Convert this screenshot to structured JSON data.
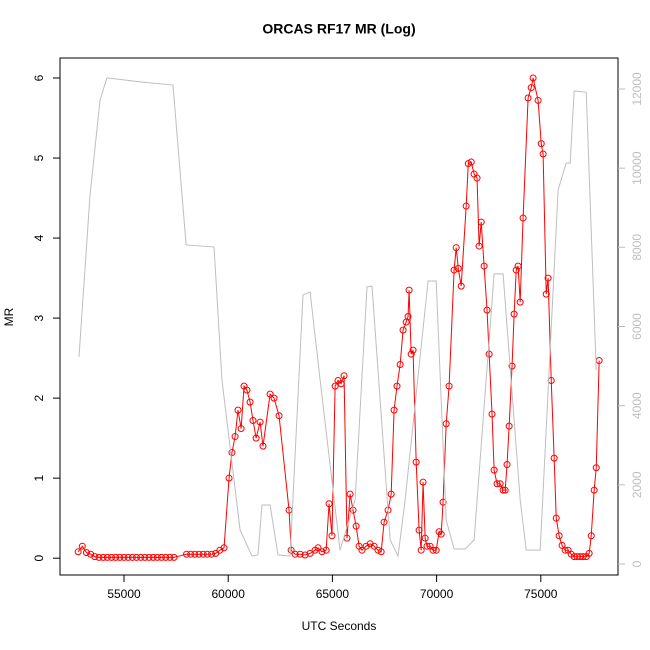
{
  "chart_data": {
    "type": "line",
    "title": "ORCAS RF17 MR (Log)",
    "x_label": "UTC Seconds",
    "y_label": "MR",
    "xlim": [
      51929,
      78704
    ],
    "xticks": [
      55000,
      60000,
      65000,
      70000,
      75000
    ],
    "ylim": [
      -0.21,
      6.25
    ],
    "yticks": [
      0,
      1,
      2,
      3,
      4,
      5,
      6
    ],
    "y2lim": [
      -278,
      12783
    ],
    "y2ticks": [
      0,
      2000,
      4000,
      6000,
      8000,
      10000,
      12000
    ],
    "series": [
      {
        "name": "MR",
        "color": "#ff0000",
        "axis": "y",
        "markers": true,
        "x": [
          52800,
          53000,
          53200,
          53400,
          53600,
          53800,
          54000,
          54200,
          54400,
          54600,
          54800,
          55000,
          55200,
          55400,
          55600,
          55800,
          56000,
          56200,
          56400,
          56600,
          56800,
          57000,
          57200,
          57400,
          58000,
          58200,
          58400,
          58600,
          58800,
          59000,
          59200,
          59400,
          59600,
          59800,
          60040,
          60180,
          60330,
          60470,
          60620,
          60760,
          60900,
          61050,
          61190,
          61340,
          61530,
          61670,
          62010,
          62200,
          62440,
          62920,
          63020,
          63210,
          63450,
          63690,
          63930,
          64170,
          64310,
          64500,
          64700,
          64840,
          64980,
          65130,
          65270,
          65420,
          65560,
          65700,
          65850,
          65990,
          66140,
          66280,
          66420,
          66620,
          66810,
          67000,
          67190,
          67340,
          67480,
          67670,
          67820,
          67960,
          68100,
          68250,
          68390,
          68540,
          68630,
          68680,
          68780,
          68870,
          69020,
          69160,
          69260,
          69350,
          69450,
          69540,
          69690,
          69830,
          69980,
          70120,
          70220,
          70310,
          70460,
          70600,
          70840,
          70940,
          71040,
          71180,
          71420,
          71520,
          71660,
          71800,
          71940,
          72040,
          72140,
          72280,
          72420,
          72520,
          72660,
          72760,
          72900,
          73050,
          73190,
          73290,
          73380,
          73480,
          73620,
          73720,
          73820,
          73910,
          74010,
          74150,
          74390,
          74540,
          74630,
          74870,
          75020,
          75110,
          75260,
          75350,
          75500,
          75640,
          75740,
          75880,
          76020,
          76170,
          76310,
          76460,
          76600,
          76740,
          76890,
          77030,
          77180,
          77320,
          77420,
          77560,
          77660,
          77800
        ],
        "values": [
          0.08,
          0.15,
          0.07,
          0.05,
          0.02,
          0.01,
          0.01,
          0.01,
          0.01,
          0.01,
          0.01,
          0.01,
          0.01,
          0.01,
          0.01,
          0.01,
          0.01,
          0.01,
          0.01,
          0.01,
          0.01,
          0.01,
          0.01,
          0.01,
          0.05,
          0.05,
          0.05,
          0.05,
          0.05,
          0.05,
          0.05,
          0.06,
          0.1,
          0.13,
          1.0,
          1.32,
          1.52,
          1.85,
          1.62,
          2.15,
          2.1,
          1.95,
          1.72,
          1.5,
          1.7,
          1.4,
          2.05,
          2.0,
          1.78,
          0.6,
          0.1,
          0.05,
          0.05,
          0.04,
          0.06,
          0.1,
          0.13,
          0.08,
          0.1,
          0.68,
          0.28,
          2.15,
          2.22,
          2.18,
          2.28,
          0.25,
          0.8,
          0.6,
          0.4,
          0.15,
          0.1,
          0.15,
          0.18,
          0.15,
          0.1,
          0.08,
          0.45,
          0.6,
          0.8,
          1.85,
          2.15,
          2.42,
          2.85,
          2.95,
          3.02,
          3.35,
          2.55,
          2.6,
          1.2,
          0.35,
          0.1,
          0.95,
          0.25,
          0.15,
          0.15,
          0.1,
          0.1,
          0.33,
          0.3,
          0.7,
          1.68,
          2.15,
          3.6,
          3.88,
          3.62,
          3.4,
          4.4,
          4.93,
          4.95,
          4.8,
          4.75,
          3.9,
          4.2,
          3.65,
          3.1,
          2.55,
          1.8,
          1.1,
          0.93,
          0.93,
          0.85,
          0.85,
          1.17,
          1.65,
          2.4,
          3.05,
          3.6,
          3.65,
          3.2,
          4.25,
          5.75,
          5.88,
          6.0,
          5.72,
          5.18,
          5.05,
          3.3,
          3.5,
          2.22,
          1.25,
          0.5,
          0.28,
          0.16,
          0.1,
          0.1,
          0.05,
          0.02,
          0.02,
          0.02,
          0.02,
          0.02,
          0.06,
          0.28,
          0.85,
          1.13,
          2.47
        ]
      },
      {
        "name": "Altitude",
        "color": "#bebebe",
        "axis": "y2",
        "markers": false,
        "x": [
          52840,
          53370,
          53850,
          54180,
          55770,
          57350,
          57980,
          59320,
          59700,
          60570,
          61140,
          61430,
          61620,
          62010,
          62390,
          62970,
          63590,
          63930,
          64410,
          65370,
          66090,
          66660,
          66900,
          67770,
          68150,
          68490,
          69590,
          69980,
          70460,
          70840,
          71370,
          71800,
          72760,
          73190,
          74010,
          74300,
          74970,
          75830,
          76220,
          76410,
          76600,
          77180,
          77660
        ],
        "values": [
          5230,
          9320,
          11720,
          12280,
          12180,
          12100,
          8060,
          8010,
          4650,
          860,
          200,
          230,
          1490,
          1490,
          230,
          200,
          6800,
          6870,
          4650,
          350,
          1620,
          7000,
          7020,
          610,
          200,
          1620,
          7150,
          7150,
          1110,
          380,
          380,
          610,
          7330,
          7330,
          1620,
          350,
          350,
          9450,
          10130,
          10130,
          11950,
          11920,
          4900
        ]
      }
    ]
  }
}
